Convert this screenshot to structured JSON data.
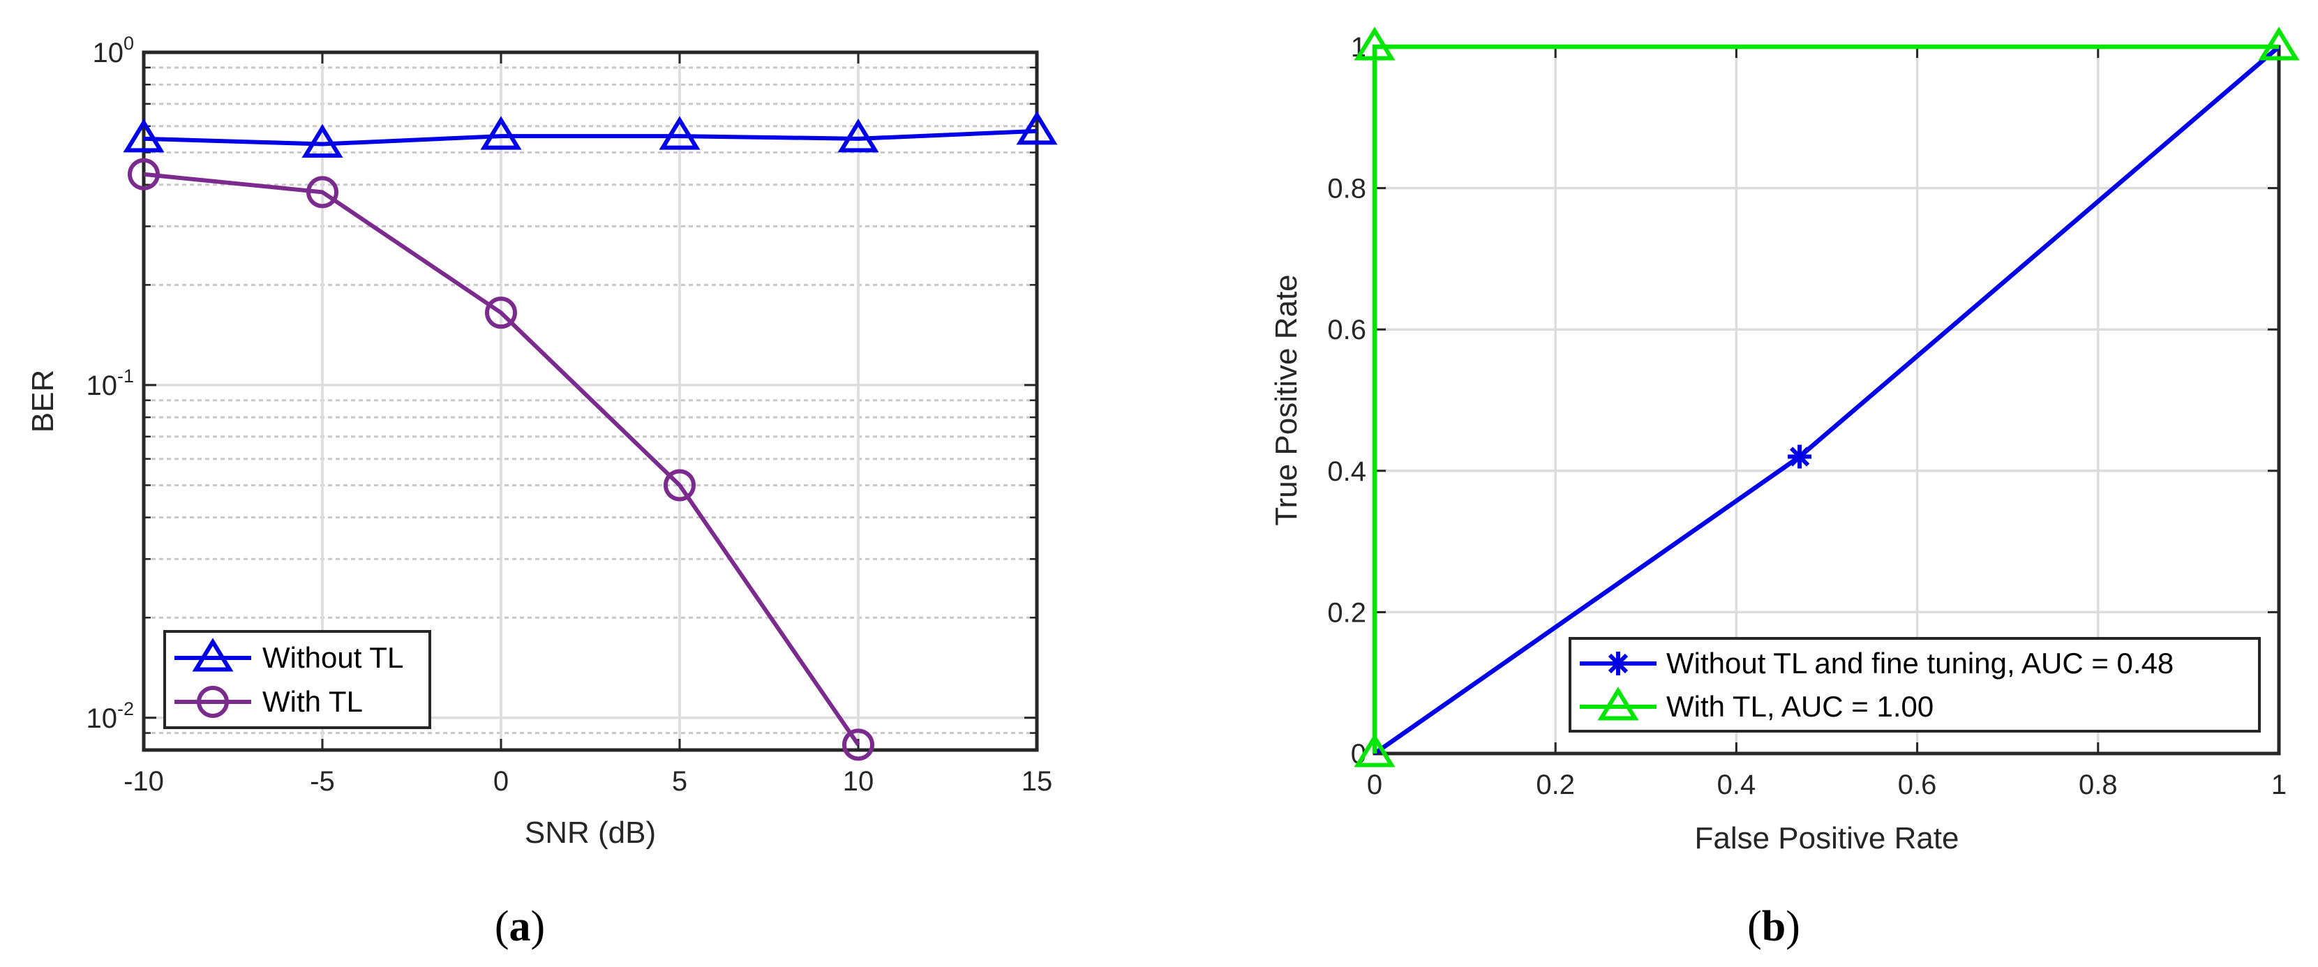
{
  "chart_data": [
    {
      "type": "line",
      "panel_label": "a",
      "xlabel": "SNR (dB)",
      "ylabel": "BER",
      "xlim": [
        -10,
        15
      ],
      "ylim": [
        0.008,
        1
      ],
      "yscale": "log",
      "grid": true,
      "x": [
        -10,
        -5,
        0,
        5,
        10,
        15
      ],
      "x_ticks": [
        "-10",
        "-5",
        "0",
        "5",
        "10",
        "15"
      ],
      "y_ticks": [
        {
          "base": "10",
          "exp": "0",
          "value": 1
        },
        {
          "base": "10",
          "exp": "-1",
          "value": 0.1
        },
        {
          "base": "10",
          "exp": "-2",
          "value": 0.01
        }
      ],
      "legend_position": "bottom-left",
      "series": [
        {
          "name": "Without TL",
          "color": "#0000e6",
          "marker": "triangle",
          "values": [
            0.55,
            0.53,
            0.56,
            0.56,
            0.55,
            0.58
          ]
        },
        {
          "name": "With TL",
          "color": "#7b2a8e",
          "marker": "circle",
          "values": [
            0.43,
            0.38,
            0.165,
            0.05,
            0.0083,
            null
          ]
        }
      ]
    },
    {
      "type": "line",
      "panel_label": "b",
      "xlabel": "False Positive Rate",
      "ylabel": "True Positive Rate",
      "xlim": [
        0,
        1
      ],
      "ylim": [
        0,
        1
      ],
      "grid": true,
      "x_ticks": [
        "0",
        "0.2",
        "0.4",
        "0.6",
        "0.8",
        "1"
      ],
      "y_ticks": [
        "0",
        "0.2",
        "0.4",
        "0.6",
        "0.8",
        "1"
      ],
      "legend_position": "bottom-right",
      "series": [
        {
          "name": "Without TL and fine tuning, AUC = 0.48",
          "color": "#0000e6",
          "marker": "asterisk",
          "x": [
            0,
            0.47,
            1
          ],
          "y": [
            0,
            0.42,
            1
          ],
          "marker_x": [
            0.47
          ],
          "marker_y": [
            0.42
          ]
        },
        {
          "name": "With TL, AUC = 1.00",
          "color": "#00e600",
          "marker": "triangle",
          "x": [
            0,
            0,
            1
          ],
          "y": [
            0,
            1,
            1
          ],
          "marker_x": [
            0,
            0,
            1
          ],
          "marker_y": [
            0,
            1,
            1
          ]
        }
      ]
    }
  ]
}
